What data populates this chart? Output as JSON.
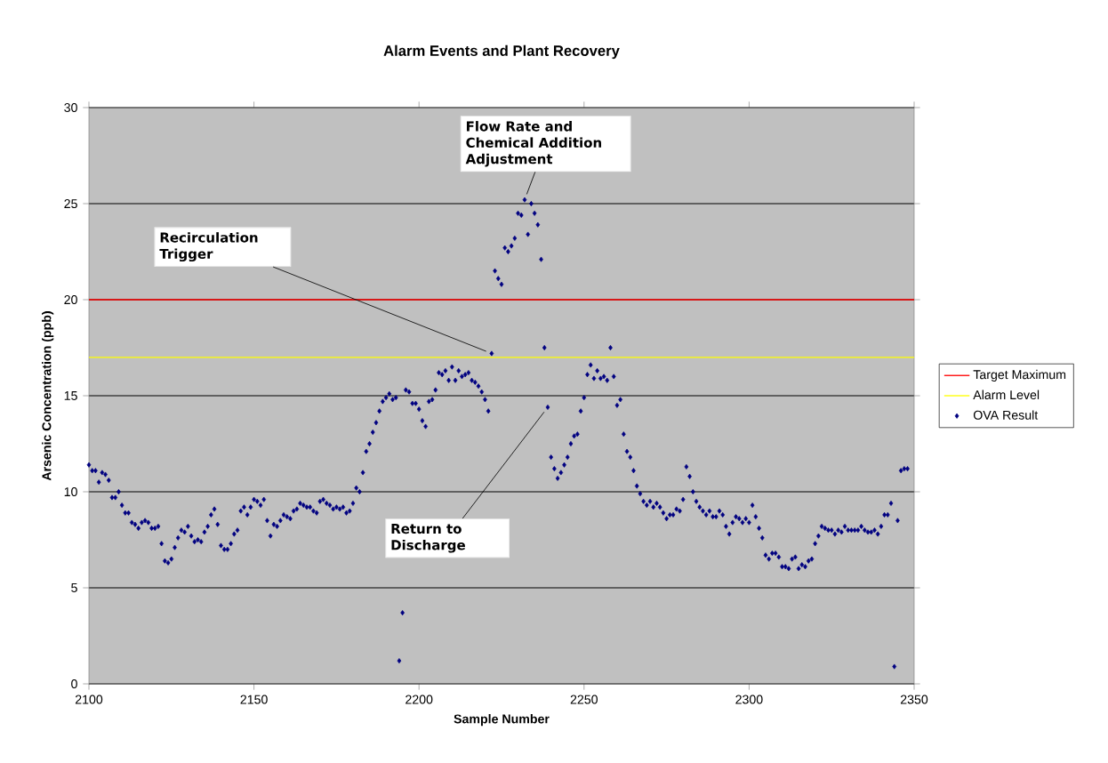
{
  "chart_data": {
    "type": "scatter",
    "title": "Alarm Events and Plant Recovery",
    "xlabel": "Sample Number",
    "ylabel": "Arsenic Concentration (ppb)",
    "xlim": [
      2100,
      2350
    ],
    "xticks": [
      2100,
      2150,
      2200,
      2250,
      2300,
      2350
    ],
    "ylim": [
      0,
      30
    ],
    "yticks": [
      0,
      5,
      10,
      15,
      20,
      25,
      30
    ],
    "grid": "y",
    "legend": "right",
    "marker": "diamond",
    "ref_lines": [
      {
        "axis": "y",
        "value": 20,
        "label": "Target Maximum",
        "color": "#ff0000"
      },
      {
        "axis": "y",
        "value": 17,
        "label": "Alarm Level",
        "color": "#ffff00"
      }
    ],
    "annotations": [
      {
        "text": "Recirculation Trigger",
        "x": 2222,
        "y": 17.2
      },
      {
        "text": "Flow Rate and Chemical Addition Adjustment",
        "x": 2232,
        "y": 25.2
      },
      {
        "text": "Return to Discharge",
        "x": 2239,
        "y": 14.4
      }
    ],
    "series": [
      {
        "name": "OVA Result",
        "color": "#000080",
        "x": [
          2100,
          2101,
          2102,
          2103,
          2104,
          2105,
          2106,
          2107,
          2108,
          2109,
          2110,
          2111,
          2112,
          2113,
          2114,
          2115,
          2116,
          2117,
          2118,
          2119,
          2120,
          2121,
          2122,
          2123,
          2124,
          2125,
          2126,
          2127,
          2128,
          2129,
          2130,
          2131,
          2132,
          2133,
          2134,
          2135,
          2136,
          2137,
          2138,
          2139,
          2140,
          2141,
          2142,
          2143,
          2144,
          2145,
          2146,
          2147,
          2148,
          2149,
          2150,
          2151,
          2152,
          2153,
          2154,
          2155,
          2156,
          2157,
          2158,
          2159,
          2160,
          2161,
          2162,
          2163,
          2164,
          2165,
          2166,
          2167,
          2168,
          2169,
          2170,
          2171,
          2172,
          2173,
          2174,
          2175,
          2176,
          2177,
          2178,
          2179,
          2180,
          2181,
          2182,
          2183,
          2184,
          2185,
          2186,
          2187,
          2188,
          2189,
          2190,
          2191,
          2192,
          2193,
          2194,
          2195,
          2196,
          2197,
          2198,
          2199,
          2200,
          2201,
          2202,
          2203,
          2204,
          2205,
          2206,
          2207,
          2208,
          2209,
          2210,
          2211,
          2212,
          2213,
          2214,
          2215,
          2216,
          2217,
          2218,
          2219,
          2220,
          2221,
          2222,
          2223,
          2224,
          2225,
          2226,
          2227,
          2228,
          2229,
          2230,
          2231,
          2232,
          2233,
          2234,
          2235,
          2236,
          2237,
          2238,
          2239,
          2240,
          2241,
          2242,
          2243,
          2244,
          2245,
          2246,
          2247,
          2248,
          2249,
          2250,
          2251,
          2252,
          2253,
          2254,
          2255,
          2256,
          2257,
          2258,
          2259,
          2260,
          2261,
          2262,
          2263,
          2264,
          2265,
          2266,
          2267,
          2268,
          2269,
          2270,
          2271,
          2272,
          2273,
          2274,
          2275,
          2276,
          2277,
          2278,
          2279,
          2280,
          2281,
          2282,
          2283,
          2284,
          2285,
          2286,
          2287,
          2288,
          2289,
          2290,
          2291,
          2292,
          2293,
          2294,
          2295,
          2296,
          2297,
          2298,
          2299,
          2300,
          2301,
          2302,
          2303,
          2304,
          2305,
          2306,
          2307,
          2308,
          2309,
          2310,
          2311,
          2312,
          2313,
          2314,
          2315,
          2316,
          2317,
          2318,
          2319,
          2320,
          2321,
          2322,
          2323,
          2324,
          2325,
          2326,
          2327,
          2328,
          2329,
          2330,
          2331,
          2332,
          2333,
          2334,
          2335,
          2336,
          2337,
          2338,
          2339,
          2340,
          2341,
          2342,
          2343,
          2344,
          2345,
          2346,
          2347,
          2348
        ],
        "values": [
          11.4,
          11.1,
          11.1,
          10.5,
          11.0,
          10.9,
          10.6,
          9.7,
          9.7,
          10.0,
          9.3,
          8.9,
          8.9,
          8.4,
          8.3,
          8.1,
          8.4,
          8.5,
          8.4,
          8.1,
          8.1,
          8.2,
          7.3,
          6.4,
          6.3,
          6.5,
          7.1,
          7.6,
          8.0,
          7.9,
          8.2,
          7.7,
          7.4,
          7.5,
          7.4,
          7.9,
          8.2,
          8.8,
          9.1,
          8.3,
          7.2,
          7.0,
          7.0,
          7.3,
          7.8,
          8.0,
          9.0,
          9.2,
          8.8,
          9.2,
          9.6,
          9.5,
          9.3,
          9.6,
          8.5,
          7.7,
          8.3,
          8.2,
          8.5,
          8.8,
          8.7,
          8.6,
          9.0,
          9.1,
          9.4,
          9.3,
          9.2,
          9.2,
          9.0,
          8.9,
          9.5,
          9.6,
          9.4,
          9.3,
          9.1,
          9.2,
          9.1,
          9.2,
          8.9,
          9.0,
          9.4,
          10.2,
          10.0,
          11.0,
          12.1,
          12.5,
          13.1,
          13.6,
          14.2,
          14.7,
          14.9,
          15.1,
          14.8,
          14.9,
          1.2,
          3.7,
          15.3,
          15.2,
          14.6,
          14.6,
          14.3,
          13.7,
          13.4,
          14.7,
          14.8,
          15.3,
          16.2,
          16.1,
          16.3,
          15.8,
          16.5,
          15.8,
          16.3,
          16.0,
          16.1,
          16.2,
          15.8,
          15.7,
          15.5,
          15.2,
          14.8,
          14.2,
          17.2,
          21.5,
          21.1,
          20.8,
          22.7,
          22.5,
          22.8,
          23.2,
          24.5,
          24.4,
          25.2,
          23.4,
          25.0,
          24.5,
          23.9,
          22.1,
          17.5,
          14.4,
          11.8,
          11.2,
          10.7,
          11.0,
          11.4,
          11.8,
          12.5,
          12.9,
          13.0,
          14.2,
          14.9,
          16.1,
          16.6,
          15.9,
          16.3,
          15.9,
          16.0,
          15.8,
          17.5,
          16.0,
          14.5,
          14.8,
          13.0,
          12.1,
          11.8,
          11.1,
          10.3,
          9.9,
          9.5,
          9.3,
          9.5,
          9.2,
          9.4,
          9.2,
          8.9,
          8.6,
          8.8,
          8.8,
          9.1,
          9.0,
          9.6,
          11.3,
          10.8,
          10.0,
          9.5,
          9.2,
          9.0,
          8.8,
          9.0,
          8.7,
          8.7,
          9.0,
          8.8,
          8.2,
          7.8,
          8.4,
          8.7,
          8.6,
          8.4,
          8.6,
          8.4,
          9.3,
          8.7,
          8.1,
          7.6,
          6.7,
          6.5,
          6.8,
          6.8,
          6.6,
          6.1,
          6.1,
          6.0,
          6.5,
          6.6,
          6.0,
          6.2,
          6.1,
          6.4,
          6.5,
          7.3,
          7.7,
          8.2,
          8.1,
          8.0,
          8.0,
          7.8,
          8.0,
          7.9,
          8.2,
          8.0,
          8.0,
          8.0,
          8.0,
          8.2,
          8.0,
          7.9,
          7.9,
          8.0,
          7.8,
          8.2,
          8.8,
          8.8,
          9.4,
          0.9,
          8.5,
          11.1,
          11.2,
          11.2
        ]
      }
    ]
  }
}
